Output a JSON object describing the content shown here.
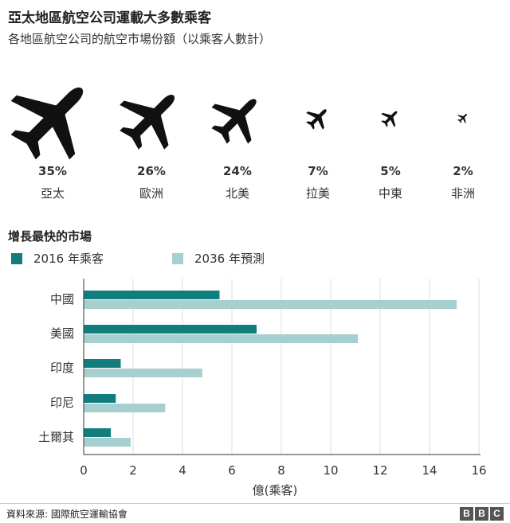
{
  "title": "亞太地區航空公司運載大多數乘客",
  "subtitle": "各地區航空公司的航空市場份額（以乘客人數計）",
  "market_share": [
    {
      "share": "35%",
      "region": "亞太",
      "value": 35
    },
    {
      "share": "26%",
      "region": "歐洲",
      "value": 26
    },
    {
      "share": "24%",
      "region": "北美",
      "value": 24
    },
    {
      "share": "7%",
      "region": "拉美",
      "value": 7
    },
    {
      "share": "5%",
      "region": "中東",
      "value": 5
    },
    {
      "share": "2%",
      "region": "非洲",
      "value": 2
    }
  ],
  "section_title": "增長最快的市場",
  "colors": {
    "series_2016": "#127d7d",
    "series_2036": "#a6cfcf",
    "grid": "#dddddd",
    "axis": "#333333"
  },
  "chart_data": {
    "type": "bar",
    "orientation": "horizontal",
    "categories": [
      "中國",
      "美國",
      "印度",
      "印尼",
      "土爾其"
    ],
    "series": [
      {
        "name": "2016 年乘客",
        "values": [
          5.5,
          7.0,
          1.5,
          1.3,
          1.1
        ]
      },
      {
        "name": "2036 年預測",
        "values": [
          15.1,
          11.1,
          4.8,
          3.3,
          1.9
        ]
      }
    ],
    "xlabel": "億(乘客)",
    "xlim": [
      0,
      16
    ],
    "xticks": [
      "0",
      "2",
      "4",
      "6",
      "8",
      "10",
      "12",
      "14",
      "16"
    ],
    "grid": true,
    "legend": "top-left"
  },
  "footer": {
    "source": "資料來源: 國際航空運輸協會",
    "brand_letters": [
      "B",
      "B",
      "C"
    ]
  }
}
